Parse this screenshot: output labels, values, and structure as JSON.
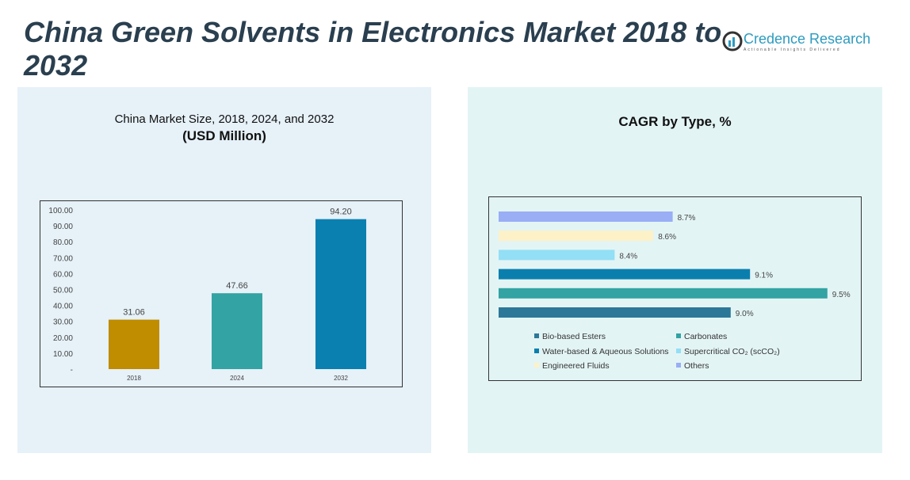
{
  "title": "China Green Solvents in Electronics Market 2018 to 2032",
  "logo": {
    "name": "Credence Research",
    "tagline": "Actionable Insights Delivered"
  },
  "chart_data": [
    {
      "type": "bar",
      "title": "China Market Size, 2018, 2024, and 2032",
      "subtitle": "(USD Million)",
      "categories": [
        "2018",
        "2024",
        "2032"
      ],
      "values": [
        31.06,
        47.66,
        94.2
      ],
      "value_labels": [
        "31.06",
        "47.66",
        "94.20"
      ],
      "colors": [
        "#c08c00",
        "#33a3a3",
        "#0a80b0"
      ],
      "ylim": [
        0,
        100
      ],
      "yticks": [
        "-",
        "10.00",
        "20.00",
        "30.00",
        "40.00",
        "50.00",
        "60.00",
        "70.00",
        "80.00",
        "90.00",
        "100.00"
      ]
    },
    {
      "type": "bar",
      "orientation": "horizontal",
      "title": "CAGR by Type, %",
      "categories": [
        "Others",
        "Engineered Fluids",
        "Supercritical CO₂ (scCO₂)",
        "Water-based & Aqueous Solutions",
        "Carbonates",
        "Bio-based Esters"
      ],
      "values": [
        8.7,
        8.6,
        8.4,
        9.1,
        9.5,
        9.0
      ],
      "value_labels": [
        "8.7%",
        "8.6%",
        "8.4%",
        "9.1%",
        "9.5%",
        "9.0%"
      ],
      "colors": [
        "#99aef5",
        "#fdf1c8",
        "#93dff5",
        "#0a7fae",
        "#33a3a3",
        "#2d7898"
      ],
      "xlim": [
        7.8,
        9.6
      ],
      "legend": [
        "Bio-based Esters",
        "Carbonates",
        "Water-based & Aqueous Solutions",
        "Supercritical CO₂ (scCO₂)",
        "Engineered Fluids",
        "Others"
      ],
      "legend_colors": [
        "#2d7898",
        "#33a3a3",
        "#0a7fae",
        "#93dff5",
        "#fdf1c8",
        "#99aef5"
      ],
      "legend_placement": "bottom"
    }
  ]
}
